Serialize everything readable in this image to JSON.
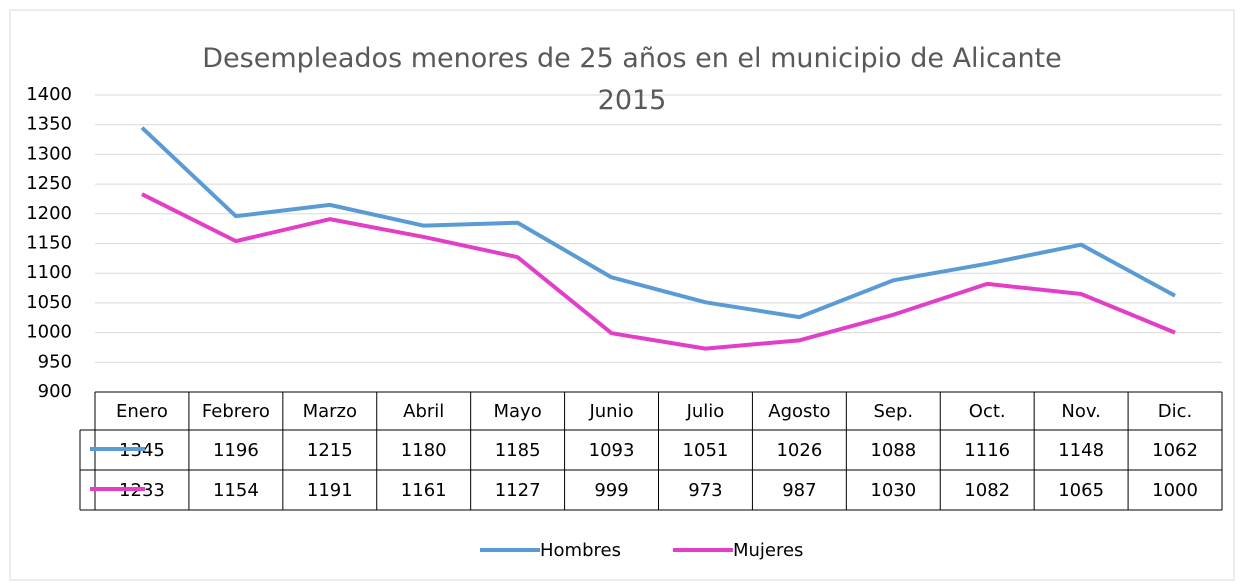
{
  "chart_data": {
    "type": "line",
    "title": "Desempleados menores de 25 años en el municipio de Alicante 2015",
    "categories": [
      "Enero",
      "Febrero",
      "Marzo",
      "Abril",
      "Mayo",
      "Junio",
      "Julio",
      "Agosto",
      "Sep.",
      "Oct.",
      "Nov.",
      "Dic."
    ],
    "series": [
      {
        "name": "Hombres",
        "color": "#5b9bd5",
        "values": [
          1345,
          1196,
          1215,
          1180,
          1185,
          1093,
          1051,
          1026,
          1088,
          1116,
          1148,
          1062
        ]
      },
      {
        "name": "Mujeres",
        "color": "#e23fc9",
        "values": [
          1233,
          1154,
          1191,
          1161,
          1127,
          999,
          973,
          987,
          1030,
          1082,
          1065,
          1000
        ]
      }
    ],
    "ylim": [
      900,
      1400
    ],
    "yticks": [
      900,
      950,
      1000,
      1050,
      1100,
      1150,
      1200,
      1250,
      1300,
      1350,
      1400
    ],
    "grid": true,
    "legend": "bottom",
    "data_table": true
  }
}
